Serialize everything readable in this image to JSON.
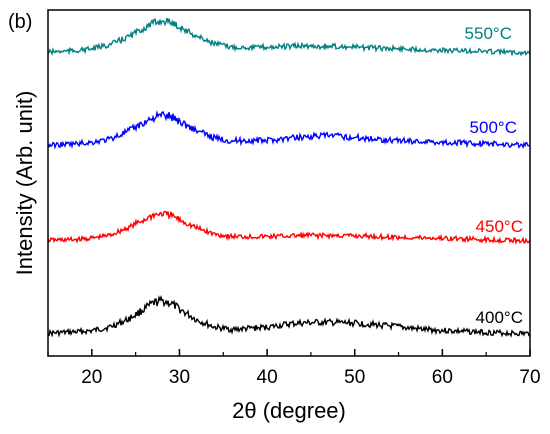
{
  "panel_label": "(b)",
  "chart_data": {
    "type": "line",
    "title": "",
    "xlabel": "2θ (degree)",
    "ylabel": "Intensity (Arb. unit)",
    "xlim": [
      15,
      70
    ],
    "x_ticks": [
      20,
      30,
      40,
      50,
      60,
      70
    ],
    "y_ticks_labeled": false,
    "y_units": "arbitrary, vertically offset stacked patterns",
    "grid": false,
    "legend": "none",
    "series": [
      {
        "name": "400°C",
        "color": "#000000",
        "points": [
          [
            15,
            0.2
          ],
          [
            18,
            0.25
          ],
          [
            20,
            0.3
          ],
          [
            22,
            0.45
          ],
          [
            24,
            0.75
          ],
          [
            26,
            1.2
          ],
          [
            27,
            1.45
          ],
          [
            28,
            1.55
          ],
          [
            29,
            1.45
          ],
          [
            30,
            1.2
          ],
          [
            32,
            0.75
          ],
          [
            34,
            0.45
          ],
          [
            36,
            0.35
          ],
          [
            40,
            0.45
          ],
          [
            43,
            0.6
          ],
          [
            46,
            0.65
          ],
          [
            50,
            0.62
          ],
          [
            54,
            0.5
          ],
          [
            58,
            0.35
          ],
          [
            62,
            0.28
          ],
          [
            66,
            0.22
          ],
          [
            70,
            0.18
          ]
        ]
      },
      {
        "name": "450°C",
        "color": "#ff0000",
        "points": [
          [
            15,
            0.2
          ],
          [
            18,
            0.22
          ],
          [
            20,
            0.28
          ],
          [
            22,
            0.4
          ],
          [
            24,
            0.7
          ],
          [
            26,
            1.05
          ],
          [
            27,
            1.25
          ],
          [
            28,
            1.3
          ],
          [
            29,
            1.25
          ],
          [
            30,
            1.05
          ],
          [
            32,
            0.7
          ],
          [
            34,
            0.45
          ],
          [
            36,
            0.35
          ],
          [
            40,
            0.35
          ],
          [
            45,
            0.4
          ],
          [
            50,
            0.38
          ],
          [
            55,
            0.32
          ],
          [
            60,
            0.28
          ],
          [
            65,
            0.22
          ],
          [
            70,
            0.18
          ]
        ]
      },
      {
        "name": "500°C",
        "color": "#0000ff",
        "points": [
          [
            15,
            0.2
          ],
          [
            18,
            0.25
          ],
          [
            20,
            0.32
          ],
          [
            22,
            0.45
          ],
          [
            24,
            0.75
          ],
          [
            26,
            1.15
          ],
          [
            27,
            1.35
          ],
          [
            28,
            1.45
          ],
          [
            29,
            1.4
          ],
          [
            30,
            1.2
          ],
          [
            32,
            0.8
          ],
          [
            34,
            0.5
          ],
          [
            36,
            0.38
          ],
          [
            40,
            0.4
          ],
          [
            44,
            0.55
          ],
          [
            47,
            0.6
          ],
          [
            50,
            0.52
          ],
          [
            54,
            0.42
          ],
          [
            58,
            0.35
          ],
          [
            62,
            0.3
          ],
          [
            66,
            0.25
          ],
          [
            70,
            0.2
          ]
        ]
      },
      {
        "name": "550°C",
        "color": "#008080",
        "points": [
          [
            15,
            0.25
          ],
          [
            18,
            0.3
          ],
          [
            20,
            0.38
          ],
          [
            22,
            0.55
          ],
          [
            24,
            0.85
          ],
          [
            26,
            1.25
          ],
          [
            27,
            1.45
          ],
          [
            28,
            1.55
          ],
          [
            29,
            1.5
          ],
          [
            30,
            1.3
          ],
          [
            32,
            0.9
          ],
          [
            34,
            0.6
          ],
          [
            36,
            0.45
          ],
          [
            40,
            0.45
          ],
          [
            44,
            0.5
          ],
          [
            48,
            0.48
          ],
          [
            52,
            0.42
          ],
          [
            56,
            0.38
          ],
          [
            60,
            0.32
          ],
          [
            65,
            0.28
          ],
          [
            70,
            0.22
          ]
        ]
      }
    ]
  }
}
